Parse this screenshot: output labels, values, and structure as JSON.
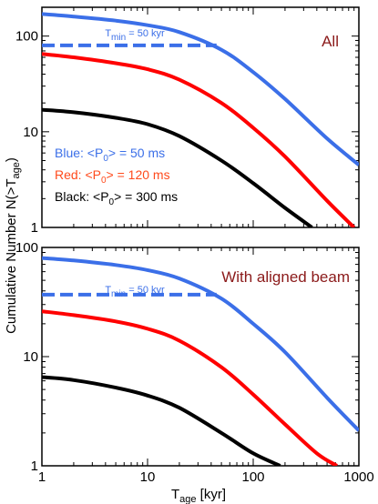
{
  "chart_data": {
    "ylabel_parts": {
      "main": "Cumulative Number N(>T",
      "sub": "age",
      "tail": ")"
    },
    "xlabel_parts": {
      "main": "T",
      "sub": "age",
      "tail": " [kyr]"
    },
    "panels": [
      {
        "type": "line",
        "x_scale": "log",
        "y_scale": "log",
        "xlim": [
          1,
          1000
        ],
        "ylim": [
          1,
          200
        ],
        "x_ticks": [],
        "y_ticks": [
          {
            "value": 1,
            "label": "1"
          },
          {
            "value": 10,
            "label": "10"
          },
          {
            "value": 100,
            "label": "100"
          }
        ],
        "annotation": "All",
        "annotation_color": "#8b1a1a",
        "tmin": {
          "label_parts": {
            "main": "T",
            "sub": "min",
            "tail": " = 50 kyr"
          },
          "y": 80,
          "x_range": [
            1,
            45
          ],
          "color": "#3b6fe8"
        },
        "legend": [
          {
            "parts": [
              "Blue: <P",
              "0",
              "> = 50 ms"
            ],
            "color": "#3b6fe8"
          },
          {
            "parts": [
              "Red: <P",
              "0",
              "> = 120 ms"
            ],
            "color": "#ff4a1c"
          },
          {
            "parts": [
              "Black: <P",
              "0",
              "> = 300 ms"
            ],
            "color": "#000000"
          }
        ],
        "series": [
          {
            "color": "#3b6fe8",
            "x": [
              1,
              2,
              5,
              10,
              20,
              50,
              100,
              200,
              500,
              1000
            ],
            "y": [
              170,
              160,
              145,
              130,
              110,
              72,
              42,
              22,
              8.5,
              4.5
            ]
          },
          {
            "color": "#ff0000",
            "x": [
              1,
              2,
              5,
              10,
              20,
              50,
              100,
              200,
              500,
              900
            ],
            "y": [
              65,
              60,
              52,
              45,
              35,
              20,
              11,
              5.5,
              1.9,
              1
            ]
          },
          {
            "color": "#000000",
            "x": [
              1,
              2,
              5,
              10,
              20,
              50,
              100,
              200,
              360
            ],
            "y": [
              17,
              16,
              14,
              12,
              9,
              5,
              2.9,
              1.6,
              1
            ]
          }
        ]
      },
      {
        "type": "line",
        "x_scale": "log",
        "y_scale": "log",
        "xlim": [
          1,
          1000
        ],
        "ylim": [
          1,
          100
        ],
        "x_ticks": [
          {
            "value": 1,
            "label": "1"
          },
          {
            "value": 10,
            "label": "10"
          },
          {
            "value": 100,
            "label": "100"
          },
          {
            "value": 1000,
            "label": "1000"
          }
        ],
        "y_ticks": [
          {
            "value": 1,
            "label": "1"
          },
          {
            "value": 10,
            "label": "10"
          },
          {
            "value": 100,
            "label": "100"
          }
        ],
        "annotation": "With aligned beam",
        "annotation_color": "#8b1a1a",
        "tmin": {
          "label_parts": {
            "main": "T",
            "sub": "min",
            "tail": " = 50 kyr"
          },
          "y": 37,
          "x_range": [
            1,
            45
          ],
          "color": "#3b6fe8"
        },
        "legend": [],
        "series": [
          {
            "color": "#3b6fe8",
            "x": [
              1,
              2,
              5,
              10,
              20,
              50,
              100,
              200,
              500,
              1000
            ],
            "y": [
              80,
              76,
              69,
              62,
              52,
              34,
              20,
              11,
              4.2,
              2.1
            ]
          },
          {
            "color": "#ff0000",
            "x": [
              1,
              2,
              5,
              10,
              20,
              50,
              100,
              200,
              400,
              620
            ],
            "y": [
              26,
              24,
              21,
              18,
              14,
              8,
              4.5,
              2.4,
              1.3,
              1
            ]
          },
          {
            "color": "#000000",
            "x": [
              1,
              2,
              5,
              10,
              20,
              50,
              100,
              180
            ],
            "y": [
              6.5,
              6.1,
              5.2,
              4.4,
              3.4,
              2.0,
              1.3,
              1
            ]
          }
        ]
      }
    ]
  }
}
